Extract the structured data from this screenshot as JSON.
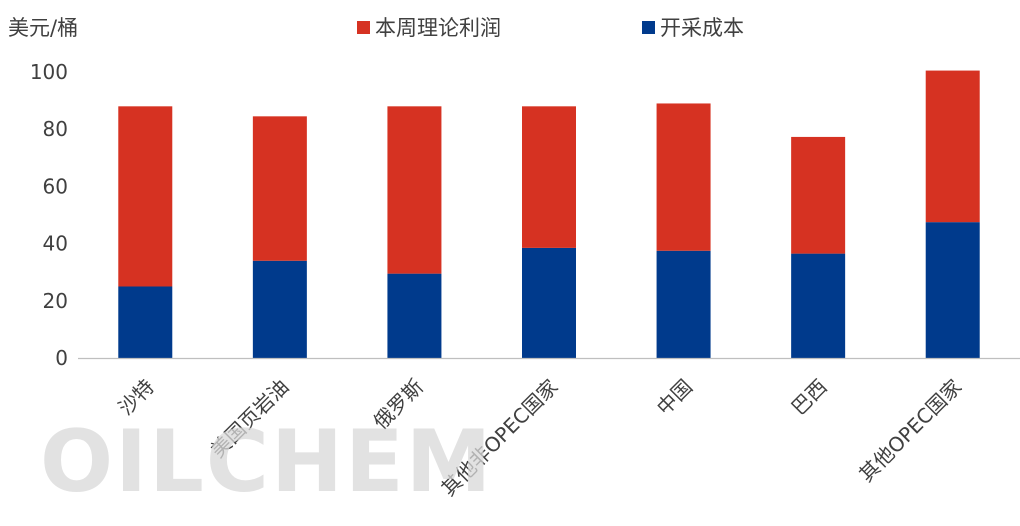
{
  "chart_data": {
    "type": "bar",
    "stacked": true,
    "unit_label": "美元/桶",
    "categories": [
      "沙特",
      "美国页岩油",
      "俄罗斯",
      "其他非OPEC国家",
      "中国",
      "巴西",
      "其他OPEC国家"
    ],
    "series": [
      {
        "name": "开采成本",
        "color": "#003a8c",
        "values": [
          25,
          34,
          29.5,
          38.5,
          37.5,
          36.5,
          47.5
        ]
      },
      {
        "name": "本周理论利润",
        "color": "#d63222",
        "values": [
          63,
          50.5,
          58.5,
          49.5,
          51.5,
          40.8,
          53
        ]
      }
    ],
    "legend_order": [
      1,
      0
    ],
    "ylim": [
      0,
      100
    ],
    "yticks": [
      0,
      20,
      40,
      60,
      80,
      100
    ],
    "legend_position": "top"
  },
  "watermark": {
    "text": "OILCHEM"
  }
}
